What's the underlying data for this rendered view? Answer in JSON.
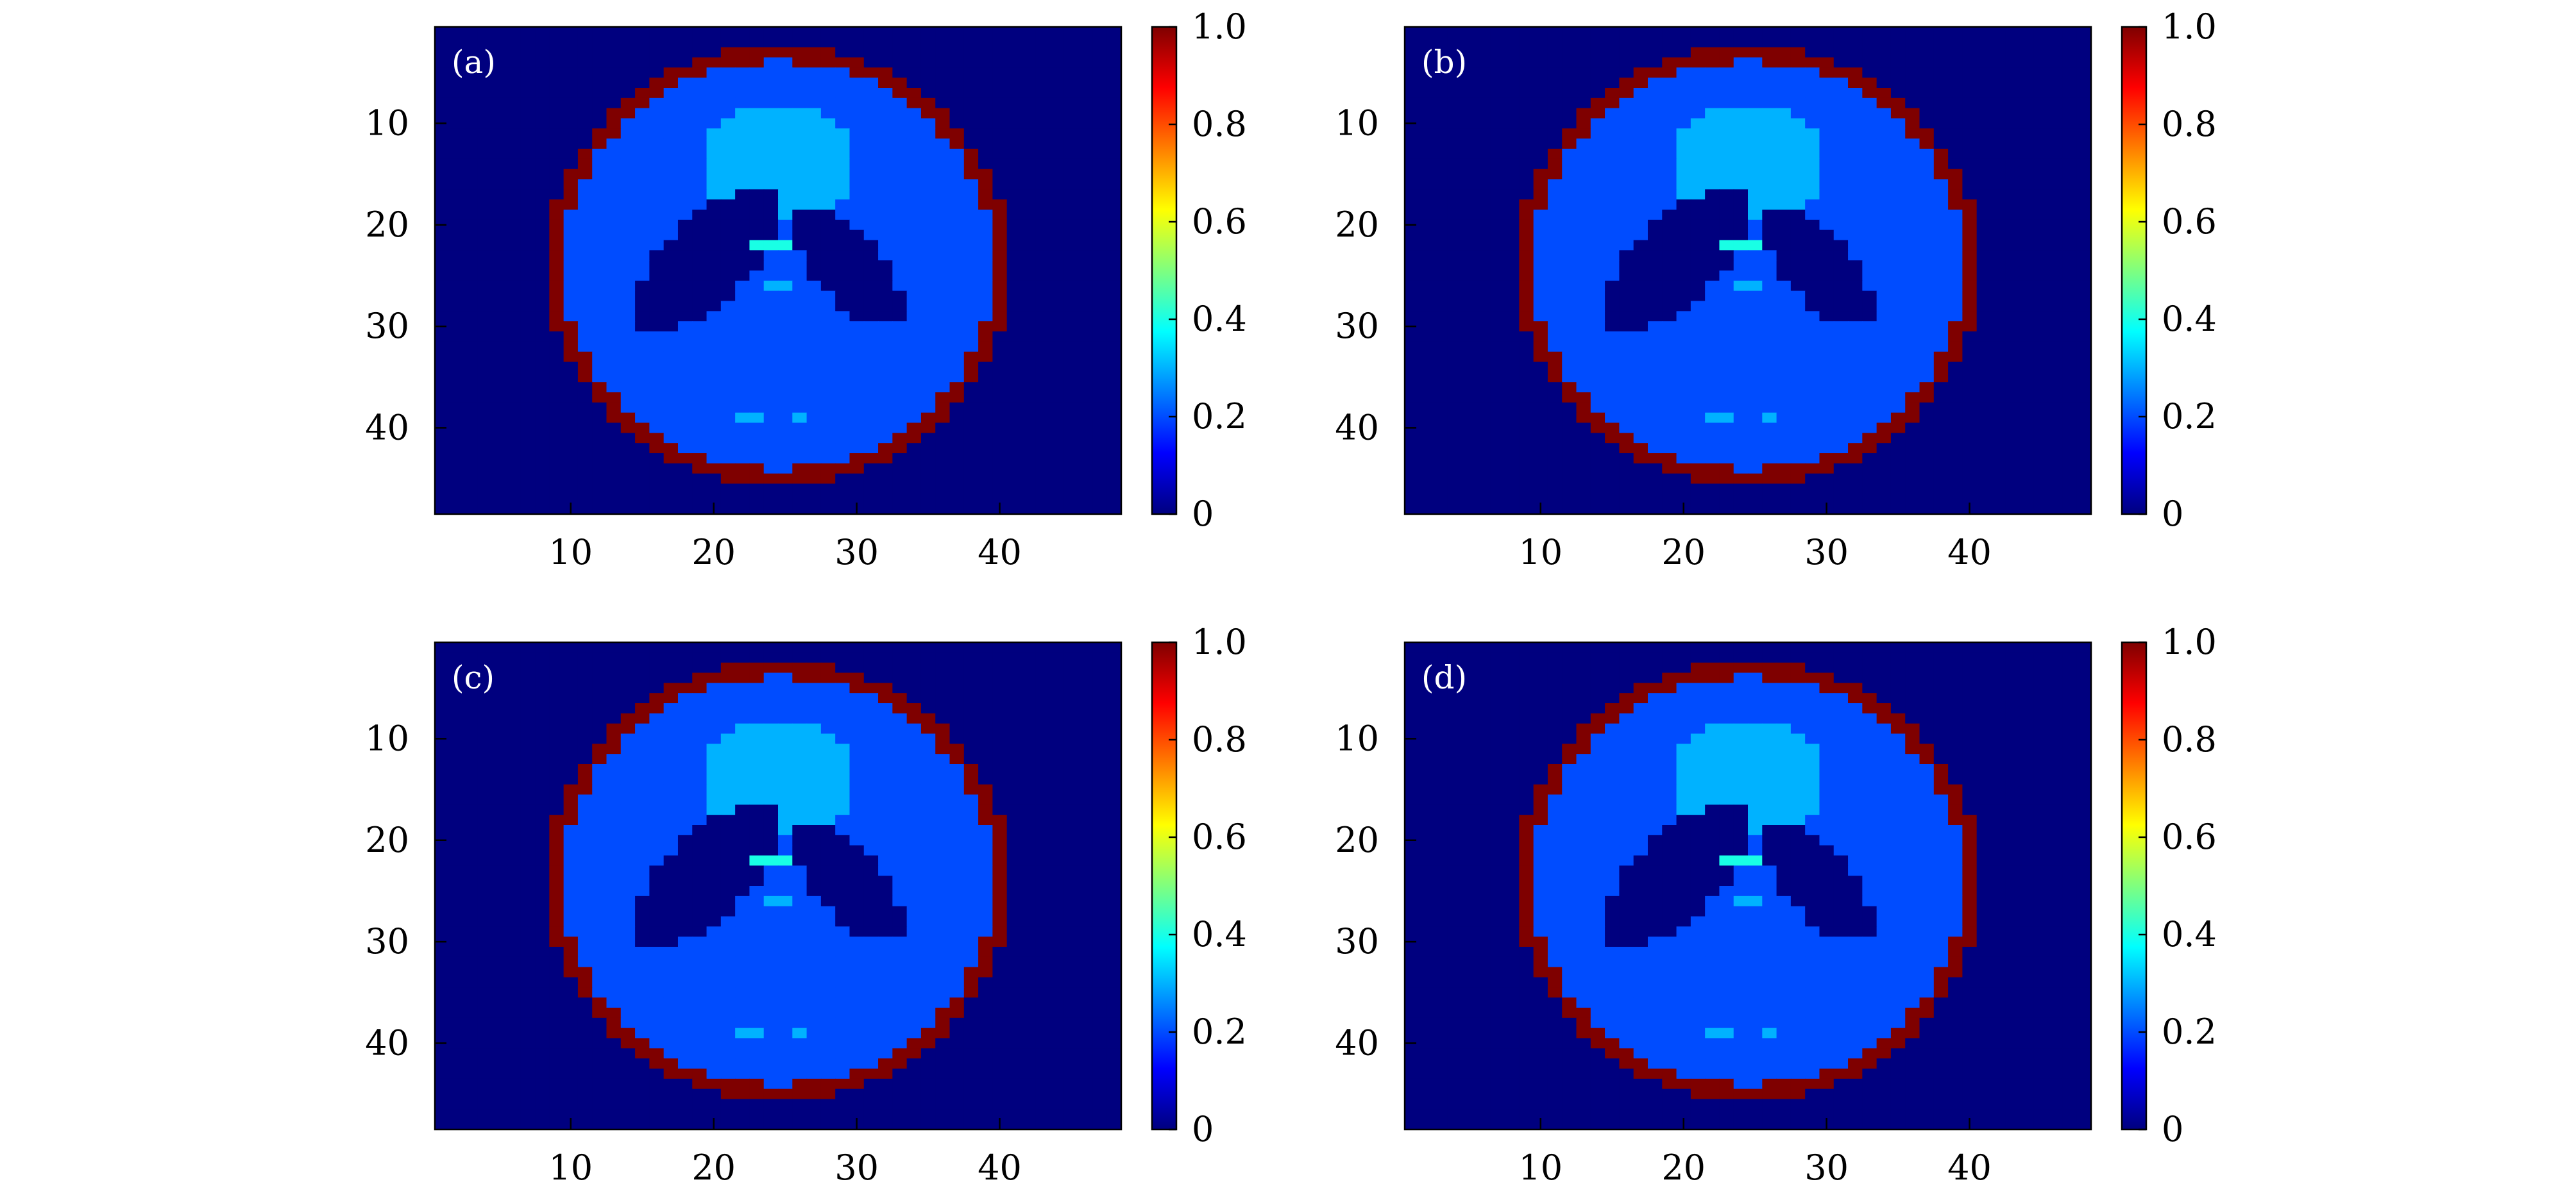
{
  "colormap": {
    "name": "jet",
    "stops": [
      "#00007f",
      "#0000ff",
      "#007fff",
      "#00ffff",
      "#7fff7f",
      "#ffff00",
      "#ff7f00",
      "#ff0000",
      "#7f0000"
    ]
  },
  "chart_data": [
    {
      "type": "heatmap",
      "panel_label": "(a)",
      "xlabel": "",
      "ylabel": "",
      "xlim": [
        0.5,
        48.5
      ],
      "ylim": [
        0.5,
        48.5
      ],
      "xticks": [
        10,
        20,
        30,
        40
      ],
      "yticks": [
        10,
        20,
        30,
        40
      ],
      "colorbar": {
        "range": [
          0,
          1
        ],
        "ticks": [
          0,
          0.2,
          0.4,
          0.6,
          0.8,
          1.0
        ],
        "tick_labels": [
          "0",
          "0.2",
          "0.4",
          "0.6",
          "0.8",
          "1.0"
        ]
      },
      "grid_size": 48,
      "regions": {
        "background": 0.0,
        "outer_ring": 1.0,
        "disk_interior": 0.2,
        "upper_ellipse": 0.3,
        "lower_left_ellipse": 0.0,
        "lower_right_ellipse": 0.0,
        "small_spot_upper": 0.4,
        "small_spot_middle": 0.3,
        "bottom_dot_left": 0.3,
        "bottom_dot_right": 0.3
      }
    },
    {
      "type": "heatmap",
      "panel_label": "(b)",
      "xlabel": "",
      "ylabel": "",
      "xlim": [
        0.5,
        48.5
      ],
      "ylim": [
        0.5,
        48.5
      ],
      "xticks": [
        10,
        20,
        30,
        40
      ],
      "yticks": [
        10,
        20,
        30,
        40
      ],
      "colorbar": {
        "range": [
          0,
          1
        ],
        "ticks": [
          0,
          0.2,
          0.4,
          0.6,
          0.8,
          1.0
        ],
        "tick_labels": [
          "0",
          "0.2",
          "0.4",
          "0.6",
          "0.8",
          "1.0"
        ]
      },
      "grid_size": 48,
      "regions": {
        "background": 0.0,
        "outer_ring": 1.0,
        "disk_interior": 0.2,
        "upper_ellipse": 0.3,
        "lower_left_ellipse": 0.0,
        "lower_right_ellipse": 0.0,
        "small_spot_upper": 0.4,
        "small_spot_middle": 0.3,
        "bottom_dot_left": 0.3,
        "bottom_dot_right": 0.3
      }
    },
    {
      "type": "heatmap",
      "panel_label": "(c)",
      "xlabel": "",
      "ylabel": "",
      "xlim": [
        0.5,
        48.5
      ],
      "ylim": [
        0.5,
        48.5
      ],
      "xticks": [
        10,
        20,
        30,
        40
      ],
      "yticks": [
        10,
        20,
        30,
        40
      ],
      "colorbar": {
        "range": [
          0,
          1
        ],
        "ticks": [
          0,
          0.2,
          0.4,
          0.6,
          0.8,
          1.0
        ],
        "tick_labels": [
          "0",
          "0.2",
          "0.4",
          "0.6",
          "0.8",
          "1.0"
        ]
      },
      "grid_size": 48,
      "regions": {
        "background": 0.0,
        "outer_ring": 1.0,
        "disk_interior": 0.2,
        "upper_ellipse": 0.3,
        "lower_left_ellipse": 0.0,
        "lower_right_ellipse": 0.0,
        "small_spot_upper": 0.4,
        "small_spot_middle": 0.3,
        "bottom_dot_left": 0.3,
        "bottom_dot_right": 0.3
      }
    },
    {
      "type": "heatmap",
      "panel_label": "(d)",
      "xlabel": "",
      "ylabel": "",
      "xlim": [
        0.5,
        48.5
      ],
      "ylim": [
        0.5,
        48.5
      ],
      "xticks": [
        10,
        20,
        30,
        40
      ],
      "yticks": [
        10,
        20,
        30,
        40
      ],
      "colorbar": {
        "range": [
          0,
          1
        ],
        "ticks": [
          0,
          0.2,
          0.4,
          0.6,
          0.8,
          1.0
        ],
        "tick_labels": [
          "0",
          "0.2",
          "0.4",
          "0.6",
          "0.8",
          "1.0"
        ]
      },
      "grid_size": 48,
      "regions": {
        "background": 0.0,
        "outer_ring": 1.0,
        "disk_interior": 0.2,
        "upper_ellipse": 0.3,
        "lower_left_ellipse": 0.0,
        "lower_right_ellipse": 0.0,
        "small_spot_upper": 0.4,
        "small_spot_middle": 0.3,
        "bottom_dot_left": 0.3,
        "bottom_dot_right": 0.3
      }
    }
  ]
}
